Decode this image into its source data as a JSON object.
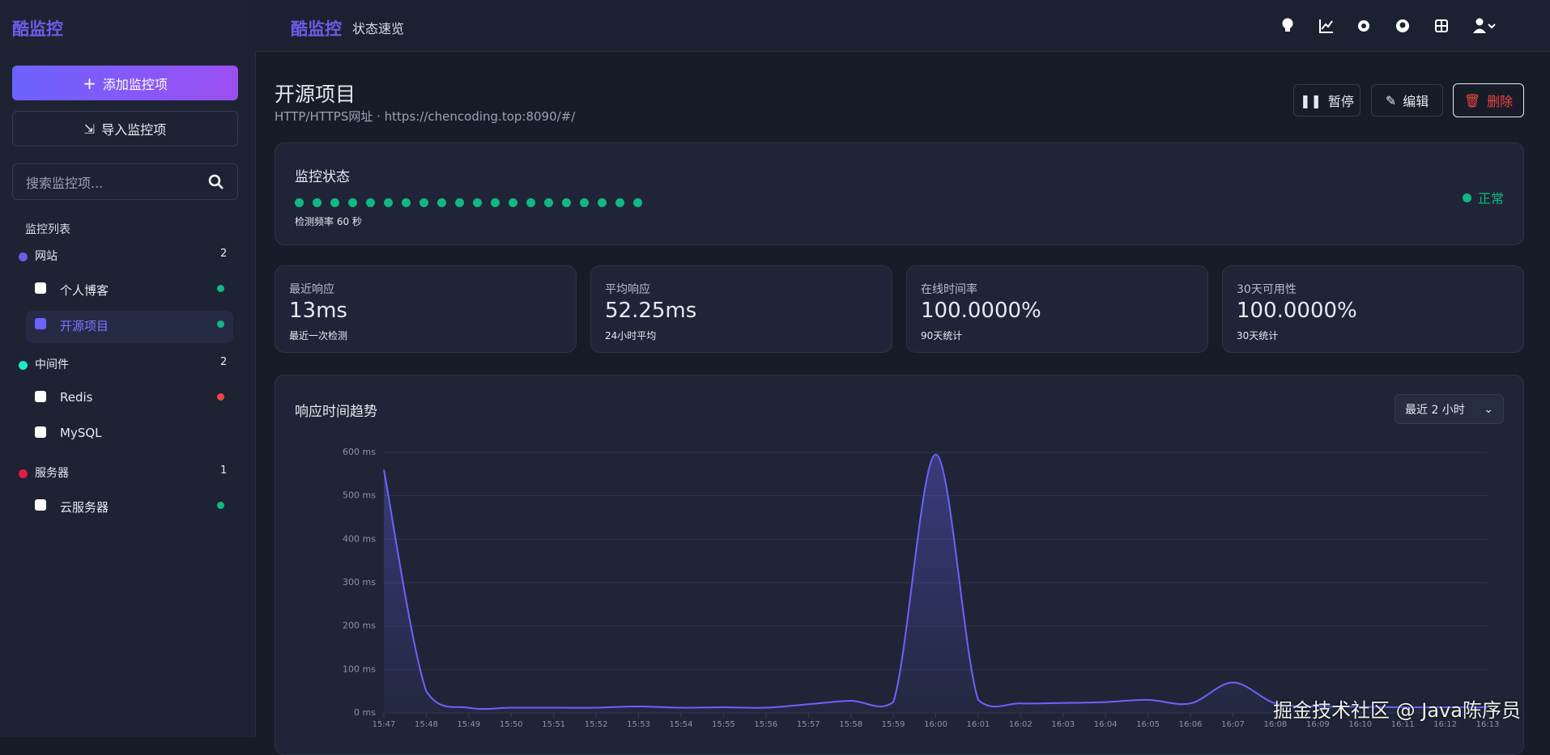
{
  "header": {
    "logo": "酷监控",
    "brand": "酷监控",
    "page": "状态速览"
  },
  "sidebar": {
    "add_button": "添加监控项",
    "import_button": "导入监控项",
    "search_placeholder": "搜索监控项...",
    "list_title": "监控列表",
    "groups": [
      {
        "name": "网站",
        "count": 2,
        "color": "#6c5ce7",
        "items": [
          {
            "name": "个人博客",
            "status": "#10b981"
          },
          {
            "name": "开源项目",
            "status": "#10b981"
          }
        ]
      },
      {
        "name": "中间件",
        "count": 2,
        "color": "#1de9c6",
        "items": [
          {
            "name": "Redis",
            "status": "#ef4444"
          },
          {
            "name": "MySQL"
          }
        ]
      },
      {
        "name": "服务器",
        "count": 1,
        "color": "#e11d48",
        "items": [
          {
            "name": "云服务器",
            "status": "#10b981"
          }
        ]
      }
    ]
  },
  "detail": {
    "title": "开源项目",
    "subtitle": "HTTP/HTTPS网址 · https://chencoding.top:8090/#/",
    "buttons": [
      "暂停",
      "编辑",
      "删除"
    ],
    "status": {
      "title": "监控状态",
      "frequency": "检测频率 60 秒",
      "state": "正常"
    },
    "stats": [
      {
        "label": "最近响应",
        "value": "13ms",
        "note": "最近一次检测"
      },
      {
        "label": "平均响应",
        "value": "52.25ms",
        "note": "24小时平均"
      },
      {
        "label": "在线时间率",
        "value": "100.0000%",
        "note": "90天统计"
      },
      {
        "label": "30天可用性",
        "value": "100.0000%",
        "note": "30天统计"
      }
    ]
  },
  "chart_data": {
    "type": "line",
    "title": "响应时间趋势",
    "range_select": "最近 2 小时",
    "x": [
      "15:47",
      "15:48",
      "15:49",
      "15:50",
      "15:51",
      "15:52",
      "15:53",
      "15:54",
      "15:55",
      "15:56",
      "15:57",
      "15:58",
      "15:59",
      "16:00",
      "16:01",
      "16:02",
      "16:03",
      "16:04",
      "16:05",
      "16:06",
      "16:07",
      "16:08",
      "16:09",
      "16:10",
      "16:11",
      "16:12",
      "16:13"
    ],
    "values": [
      560,
      50,
      12,
      12,
      12,
      12,
      15,
      12,
      13,
      12,
      20,
      28,
      25,
      595,
      30,
      22,
      23,
      25,
      30,
      22,
      70,
      22,
      15,
      14,
      13,
      13,
      13
    ],
    "color": "#6c63ff",
    "ylim": [
      0,
      600
    ],
    "yticks": [
      {
        "value": 0,
        "label": "0 ms"
      },
      {
        "value": 100,
        "label": "100 ms"
      },
      {
        "value": 200,
        "label": "200 ms"
      },
      {
        "value": 300,
        "label": "300 ms"
      },
      {
        "value": 400,
        "label": "400 ms"
      },
      {
        "value": 500,
        "label": "500 ms"
      },
      {
        "value": 600,
        "label": "600 ms"
      }
    ],
    "grid": true
  },
  "watermark": "掘金技术社区 @ Java陈序员"
}
